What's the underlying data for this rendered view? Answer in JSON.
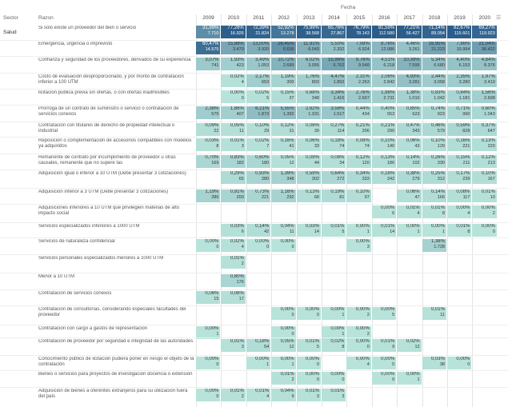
{
  "headers": {
    "sector": "Sector",
    "razon": "Razon",
    "fecha": "Fecha"
  },
  "sector": "Salud",
  "years": [
    "2009",
    "2010",
    "2011",
    "2012",
    "2013",
    "2014",
    "2015",
    "2016",
    "2017",
    "2018",
    "2019",
    "2020"
  ],
  "rows": [
    {
      "label": "Si solo existe un proveedor del bien o servicio",
      "cells": [
        [
          "31,99%",
          "7.710"
        ],
        [
          "77,26%",
          "16.926"
        ],
        [
          "72,39%",
          "21.824"
        ],
        [
          "52,92%",
          "13.278"
        ],
        [
          "75,99%",
          "38.568"
        ],
        [
          "65,76%",
          "27.867"
        ],
        [
          "76,79%",
          "78.143"
        ],
        [
          "81,59%",
          "112.580"
        ],
        [
          "77,21%",
          "56.427"
        ],
        [
          "71,14%",
          "89.054"
        ],
        [
          "82,67%",
          "115.601"
        ],
        [
          "69,27%",
          "119.923"
        ]
      ]
    },
    {
      "label": "Emergencia, urgencia o imprevisto",
      "cells": [
        [
          "60,47%",
          "14.575"
        ],
        [
          "15,88%",
          "3.479"
        ],
        [
          "13,00%",
          "3.920"
        ],
        [
          "26,45%",
          "6.636"
        ],
        [
          "11,91%",
          "6.043"
        ],
        [
          "5,50%",
          "2.332"
        ],
        [
          "7,08%",
          "6.924"
        ],
        [
          "8,76%",
          "12.086"
        ],
        [
          "4,46%",
          "3.261"
        ],
        [
          "16,95%",
          "21.223"
        ],
        [
          "7,86%",
          "10.994"
        ],
        [
          "21,04%",
          "36.422"
        ]
      ]
    },
    {
      "label": "Confianza y seguridad de los proveedores, derivados de su experiencia",
      "cells": [
        [
          "3,07%",
          "741"
        ],
        [
          "1,93%",
          "423"
        ],
        [
          "3,49%",
          "1.053"
        ],
        [
          "10,72%",
          "2.689"
        ],
        [
          "6,02%",
          "3.055"
        ],
        [
          "15,96%",
          "6.762"
        ],
        [
          "9,76%",
          "9.548"
        ],
        [
          "4,51%",
          "6.218"
        ],
        [
          "10,39%",
          "7.595"
        ],
        [
          "5,34%",
          "6.680"
        ],
        [
          "4,40%",
          "6.153"
        ],
        [
          "4,84%",
          "8.376"
        ]
      ]
    },
    {
      "label": "Costo de evaluación desproporcionado, y por monto de contratación inferior a 100 UTM",
      "cells": [
        null,
        [
          "0,02%",
          "4"
        ],
        [
          "2,17%",
          "653"
        ],
        [
          "1,19%",
          "300"
        ],
        [
          "1,76%",
          "893"
        ],
        [
          "4,47%",
          "1.892"
        ],
        [
          "2,31%",
          "2.263"
        ],
        [
          "2,06%",
          "2.842"
        ],
        [
          "4,93%",
          "3.281"
        ],
        [
          "2,44%",
          "3.058"
        ],
        [
          "2,35%",
          "3.280"
        ],
        [
          "1,97%",
          "3.410"
        ]
      ]
    },
    {
      "label": "licitación pública previa sin ofertas, o con ofertas inadmisibles",
      "cells": [
        null,
        [
          "0,00%",
          "0"
        ],
        [
          "0,02%",
          "5"
        ],
        [
          "0,15%",
          "37"
        ],
        [
          "0,68%",
          "348"
        ],
        [
          "3,34%",
          "1.416"
        ],
        [
          "2,76%",
          "2.697"
        ],
        [
          "1,98%",
          "2.731"
        ],
        [
          "1,38%",
          "1.010"
        ],
        [
          "0,83%",
          "1.042"
        ],
        [
          "0,84%",
          "1.181"
        ],
        [
          "1,56%",
          "2.698"
        ]
      ]
    },
    {
      "label": "Prórroga de un contrato de suministro o servicio o contratación de servicios conexos",
      "cells": [
        [
          "2,38%",
          "575"
        ],
        [
          "1,86%",
          "407"
        ],
        [
          "6,21%",
          "1.873"
        ],
        [
          "5,55%",
          "1.392"
        ],
        [
          "2,62%",
          "1.331"
        ],
        [
          "3,58%",
          "1.517"
        ],
        [
          "0,44%",
          "434"
        ],
        [
          "0,40%",
          "553"
        ],
        [
          "0,85%",
          "623"
        ],
        [
          "0,74%",
          "923"
        ],
        [
          "0,71%",
          "990"
        ],
        [
          "0,60%",
          "1.043"
        ]
      ]
    },
    {
      "label": "Contratación con titulares de derecho de propiedad intelectual o industrial",
      "cells": [
        [
          "0,09%",
          "22"
        ],
        [
          "0,05%",
          "11"
        ],
        [
          "0,10%",
          "29"
        ],
        [
          "0,12%",
          "31"
        ],
        [
          "0,08%",
          "39"
        ],
        [
          "0,27%",
          "114"
        ],
        [
          "0,21%",
          "206"
        ],
        [
          "0,21%",
          "290"
        ],
        [
          "0,47%",
          "343"
        ],
        [
          "0,46%",
          "579"
        ],
        [
          "0,59%",
          "828"
        ],
        [
          "0,37%",
          "647"
        ]
      ]
    },
    {
      "label": "Reposición o complementación de accesorios compatibles con modelos ya adquiridos",
      "cells": [
        [
          "0,03%",
          "8"
        ],
        [
          "0,01%",
          "3"
        ],
        [
          "0,02%",
          "7"
        ],
        [
          "0,16%",
          "41"
        ],
        [
          "0,06%",
          "33"
        ],
        [
          "0,18%",
          "74"
        ],
        [
          "0,08%",
          "74"
        ],
        [
          "0,10%",
          "140"
        ],
        [
          "0,06%",
          "43"
        ],
        [
          "0,10%",
          "129"
        ],
        [
          "0,16%",
          "221"
        ],
        [
          "0,13%",
          "220"
        ]
      ]
    },
    {
      "label": "Remanente de contrato por incumplimiento de proveedor u otras causales, remanente que no supere las",
      "cells": [
        [
          "0,70%",
          "169"
        ],
        [
          "0,83%",
          "182"
        ],
        [
          "0,60%",
          "180"
        ],
        [
          "0,05%",
          "12"
        ],
        [
          "0,09%",
          "44"
        ],
        [
          "0,08%",
          "34"
        ],
        [
          "0,12%",
          "120"
        ],
        [
          "0,13%",
          "186"
        ],
        [
          "0,14%",
          "102"
        ],
        [
          "0,26%",
          "330"
        ],
        [
          "0,15%",
          "211"
        ],
        [
          "0,12%",
          "213"
        ]
      ]
    },
    {
      "label": "Adquisición igual o inferior a 10 UTM (Debe presentar 3 cotizaciones)",
      "cells": [
        null,
        [
          "0,29%",
          "65"
        ],
        [
          "0,93%",
          "280"
        ],
        [
          "1,39%",
          "348"
        ],
        [
          "0,59%",
          "302"
        ],
        [
          "0,64%",
          "272"
        ],
        [
          "0,34%",
          "333"
        ],
        [
          "0,18%",
          "242"
        ],
        [
          "0,38%",
          "279"
        ],
        [
          "0,25%",
          "312"
        ],
        [
          "0,17%",
          "239"
        ],
        [
          "0,10%",
          "167"
        ]
      ]
    },
    {
      "label": "Adquisición inferior a 3 UTM (Debe presentar 3 cotizaciones)",
      "cells": [
        [
          "1,19%",
          "286"
        ],
        [
          "0,91%",
          "200"
        ],
        [
          "0,73%",
          "221"
        ],
        [
          "1,16%",
          "292"
        ],
        [
          "0,13%",
          "68"
        ],
        [
          "0,19%",
          "81"
        ],
        [
          "0,10%",
          "97"
        ],
        null,
        [
          "0,06%",
          "47"
        ],
        [
          "0,14%",
          "166"
        ],
        [
          "0,08%",
          "117"
        ],
        [
          "0,01%",
          "10"
        ]
      ]
    },
    {
      "label": "Adquisiciones inferiores a 10 UTM que privilegien materias de alto impacto social",
      "cells": [
        null,
        null,
        null,
        null,
        null,
        null,
        null,
        [
          "0,00%",
          "6"
        ],
        [
          "0,01%",
          "4"
        ],
        [
          "0,01%",
          "8"
        ],
        [
          "0,00%",
          "4"
        ],
        [
          "0,00%",
          "2"
        ]
      ]
    },
    {
      "label": "Servicios especializados inferiores a 1000 UTM",
      "cells": [
        null,
        [
          "0,03%",
          "6"
        ],
        [
          "0,14%",
          "42"
        ],
        [
          "0,04%",
          "11"
        ],
        [
          "0,03%",
          "14"
        ],
        [
          "0,01%",
          "5"
        ],
        [
          "0,00%",
          "1"
        ],
        [
          "0,01%",
          "14"
        ],
        [
          "0,00%",
          "1"
        ],
        [
          "0,00%",
          "1"
        ],
        [
          "0,01%",
          "8"
        ],
        [
          "0,00%",
          "0"
        ]
      ]
    },
    {
      "label": "Servicios de naturaleza confidencial",
      "cells": [
        [
          "0,00%",
          "0"
        ],
        [
          "0,02%",
          "4"
        ],
        [
          "0,00%",
          "0"
        ],
        [
          "0,00%",
          "0"
        ],
        null,
        null,
        [
          "0,00%",
          "3"
        ],
        null,
        null,
        [
          "1,38%",
          "1.728"
        ],
        null,
        null
      ]
    },
    {
      "label": "Servicios personales especializados menores a 1000 UTM",
      "cells": [
        null,
        [
          "0,01%",
          "2"
        ],
        null,
        null,
        null,
        null,
        null,
        null,
        null,
        null,
        null,
        null
      ]
    },
    {
      "label": "Menor a 10 UTM",
      "cells": [
        null,
        [
          "0,80%",
          "176"
        ],
        null,
        null,
        null,
        null,
        null,
        null,
        null,
        null,
        null,
        null
      ]
    },
    {
      "label": "Contratación de servicios conexos",
      "cells": [
        [
          "0,06%",
          "15"
        ],
        [
          "0,08%",
          "17"
        ],
        null,
        null,
        null,
        null,
        null,
        null,
        null,
        null,
        null,
        null
      ]
    },
    {
      "label": "Contratación de consultorías, considerando especiales facultades del proveedor",
      "cells": [
        null,
        null,
        null,
        [
          "0,00%",
          "0"
        ],
        [
          "0,00%",
          "0"
        ],
        [
          "0,00%",
          "1"
        ],
        [
          "0,00%",
          "2"
        ],
        [
          "0,00%",
          "5"
        ],
        null,
        [
          "0,01%",
          "11"
        ],
        null,
        null
      ]
    },
    {
      "label": "Contratación con cargo a gastos de representación",
      "cells": [
        [
          "0,00%",
          "1"
        ],
        null,
        null,
        [
          "0,00%",
          "0"
        ],
        null,
        [
          "0,00%",
          "1"
        ],
        [
          "0,00%",
          "2"
        ],
        null,
        null,
        null,
        null,
        null
      ]
    },
    {
      "label": "Contratación de proveedor por seguridad e integridad de las autoridades",
      "cells": [
        null,
        [
          "0,01%",
          "3"
        ],
        [
          "0,18%",
          "54"
        ],
        [
          "0,05%",
          "12"
        ],
        [
          "0,01%",
          "5"
        ],
        [
          "0,02%",
          "8"
        ],
        [
          "0,00%",
          "0"
        ],
        [
          "0,01%",
          "9"
        ],
        [
          "0,02%",
          "12"
        ],
        null,
        null,
        null
      ]
    },
    {
      "label": "Conocimiento público de licitación pudiera poner en riesgo el objeto de la contratación",
      "cells": [
        [
          "0,00%",
          "0"
        ],
        null,
        [
          "0,00%",
          "1"
        ],
        [
          "0,00%",
          "1"
        ],
        [
          "0,00%",
          "0"
        ],
        null,
        [
          "0,00%",
          "4"
        ],
        [
          "0,00%",
          "0"
        ],
        null,
        [
          "0,03%",
          "38"
        ],
        [
          "0,00%",
          "0"
        ],
        null
      ]
    },
    {
      "label": "Bienes o servicios para proyectos de investigación docencia o extensión",
      "cells": [
        null,
        null,
        null,
        [
          "0,01%",
          "2"
        ],
        [
          "0,00%",
          "0"
        ],
        [
          "0,00%",
          "0"
        ],
        null,
        [
          "0,00%",
          "0"
        ],
        [
          "0,00%",
          "1"
        ],
        null,
        null,
        null
      ]
    },
    {
      "label": "Adquisición de bienes a oferentes extranjeros para su utilización fuera del país",
      "cells": [
        [
          "0,00%",
          "0"
        ],
        [
          "0,01%",
          "2"
        ],
        [
          "0,01%",
          "4"
        ],
        [
          "0,04%",
          "9"
        ],
        [
          "0,01%",
          "3"
        ],
        [
          "0,01%",
          "3"
        ],
        null,
        null,
        null,
        null,
        null,
        null
      ]
    }
  ]
}
